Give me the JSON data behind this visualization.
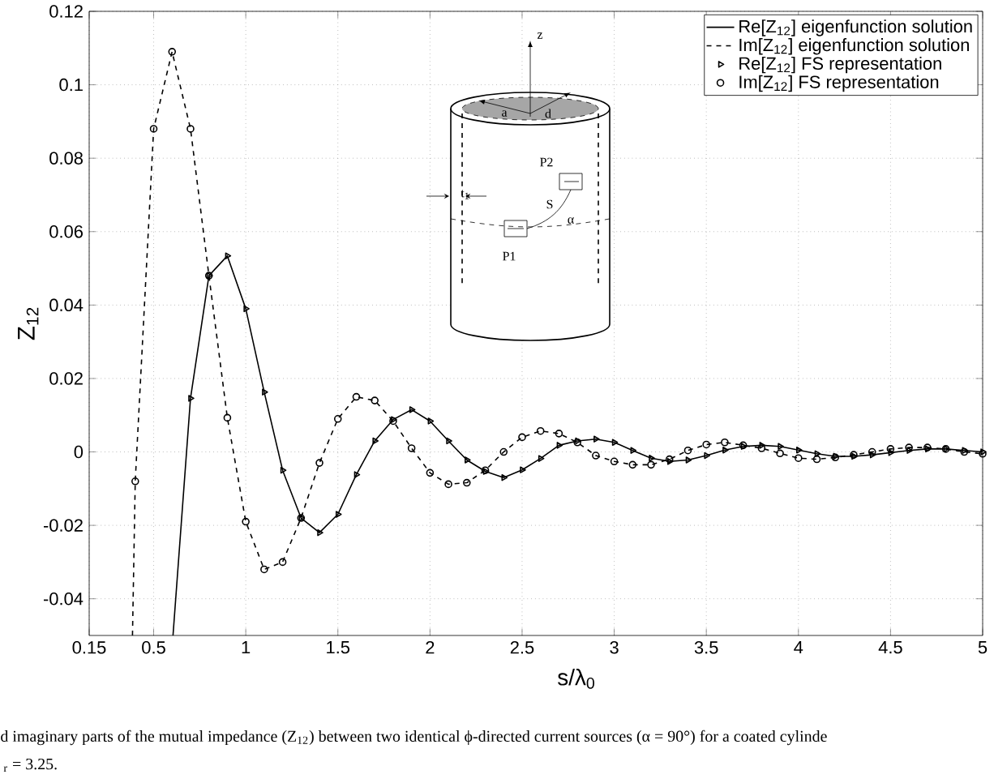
{
  "chart_data": {
    "type": "line",
    "xlabel": "s/λ$_{0}$",
    "ylabel": "Z$_{12}$",
    "xlim": [
      0.15,
      5
    ],
    "ylim": [
      -0.05,
      0.12
    ],
    "xticks": [
      0.15,
      0.5,
      1,
      1.5,
      2,
      2.5,
      3,
      3.5,
      4,
      4.5,
      5
    ],
    "yticks": [
      -0.04,
      -0.02,
      0,
      0.02,
      0.04,
      0.06,
      0.08,
      0.1,
      0.12
    ],
    "grid": true,
    "legend": "top right",
    "series": [
      {
        "name": "Re[Z$_{12}$] eigenfunction solution",
        "color": "#000000",
        "marker": "none",
        "line_style": "solid",
        "x": [
          0.605,
          0.7,
          0.8,
          0.9,
          1.0,
          1.1,
          1.2,
          1.3,
          1.4,
          1.5,
          1.6,
          1.7,
          1.8,
          1.9,
          2.0,
          2.1,
          2.2,
          2.3,
          2.4,
          2.5,
          2.6,
          2.7,
          2.8,
          2.9,
          3.0,
          3.1,
          3.2,
          3.3,
          3.4,
          3.5,
          3.6,
          3.7,
          3.8,
          3.9,
          4.0,
          4.1,
          4.2,
          4.3,
          4.4,
          4.5,
          4.6,
          4.7,
          4.8,
          4.9,
          5.0
        ],
        "values": [
          -0.05,
          0.0146,
          0.048,
          0.0534,
          0.039,
          0.0163,
          -0.005,
          -0.018,
          -0.022,
          -0.017,
          -0.0062,
          0.003,
          0.0088,
          0.0115,
          0.0084,
          0.003,
          -0.0022,
          -0.0053,
          -0.007,
          -0.0049,
          -0.0018,
          0.0018,
          0.003,
          0.0035,
          0.0026,
          0.0004,
          -0.0017,
          -0.0026,
          -0.0022,
          -0.001,
          0.0005,
          0.0015,
          0.0018,
          0.0015,
          0.0005,
          -0.0005,
          -0.0012,
          -0.0012,
          -0.0008,
          -0.0002,
          0.0004,
          0.0008,
          0.0008,
          0.0004,
          0.0
        ]
      },
      {
        "name": "Im[Z$_{12}$] eigenfunction solution",
        "color": "#000000",
        "marker": "none",
        "line_style": "dashed",
        "x": [
          0.385,
          0.4,
          0.5,
          0.6,
          0.7,
          0.8,
          0.9,
          1.0,
          1.1,
          1.2,
          1.3,
          1.4,
          1.5,
          1.6,
          1.7,
          1.8,
          1.9,
          2.0,
          2.1,
          2.2,
          2.3,
          2.4,
          2.5,
          2.6,
          2.7,
          2.8,
          2.9,
          3.0,
          3.1,
          3.2,
          3.3,
          3.4,
          3.5,
          3.6,
          3.7,
          3.8,
          3.9,
          4.0,
          4.1,
          4.2,
          4.3,
          4.4,
          4.5,
          4.6,
          4.7,
          4.8,
          4.9,
          5.0
        ],
        "values": [
          -0.05,
          -0.008,
          0.088,
          0.109,
          0.088,
          0.048,
          0.0093,
          -0.019,
          -0.032,
          -0.03,
          -0.018,
          -0.003,
          0.009,
          0.015,
          0.014,
          0.0084,
          0.001,
          -0.0057,
          -0.0088,
          -0.0084,
          -0.005,
          0.0,
          0.004,
          0.0057,
          0.005,
          0.0026,
          -0.001,
          -0.0026,
          -0.0035,
          -0.0035,
          -0.002,
          0.0004,
          0.002,
          0.0026,
          0.0018,
          0.001,
          -0.0004,
          -0.0017,
          -0.002,
          -0.0015,
          -0.0008,
          0.0,
          0.0008,
          0.0012,
          0.0012,
          0.0008,
          0.0,
          -0.0005
        ]
      },
      {
        "name": "Re[Z$_{12}$] FS representation",
        "type": "scatter",
        "color": "#000000",
        "marker": "triangle",
        "x": [
          0.7,
          0.8,
          0.9,
          1.0,
          1.1,
          1.2,
          1.3,
          1.4,
          1.5,
          1.6,
          1.7,
          1.8,
          1.9,
          2.0,
          2.1,
          2.2,
          2.3,
          2.4,
          2.5,
          2.6,
          2.7,
          2.8,
          2.9,
          3.0,
          3.1,
          3.2,
          3.3,
          3.4,
          3.5,
          3.6,
          3.7,
          3.8,
          3.9,
          4.0,
          4.1,
          4.2,
          4.3,
          4.4,
          4.5,
          4.6,
          4.7,
          4.8,
          4.9,
          5.0
        ],
        "values": [
          0.0146,
          0.048,
          0.0534,
          0.039,
          0.0163,
          -0.005,
          -0.018,
          -0.022,
          -0.017,
          -0.0062,
          0.003,
          0.0088,
          0.0115,
          0.0084,
          0.003,
          -0.0022,
          -0.0053,
          -0.007,
          -0.0049,
          -0.0018,
          0.0018,
          0.003,
          0.0035,
          0.0026,
          0.0004,
          -0.0017,
          -0.0026,
          -0.0022,
          -0.001,
          0.0005,
          0.0015,
          0.0018,
          0.0015,
          0.0005,
          -0.0005,
          -0.0012,
          -0.0012,
          -0.0008,
          -0.0002,
          0.0004,
          0.0008,
          0.0008,
          0.0004,
          0.0
        ]
      },
      {
        "name": "Im[Z$_{12}$] FS representation",
        "type": "scatter",
        "color": "#000000",
        "marker": "circle",
        "x": [
          0.4,
          0.5,
          0.6,
          0.7,
          0.8,
          0.9,
          1.0,
          1.1,
          1.2,
          1.3,
          1.4,
          1.5,
          1.6,
          1.7,
          1.8,
          1.9,
          2.0,
          2.1,
          2.2,
          2.3,
          2.4,
          2.5,
          2.6,
          2.7,
          2.8,
          2.9,
          3.0,
          3.1,
          3.2,
          3.3,
          3.4,
          3.5,
          3.6,
          3.7,
          3.8,
          3.9,
          4.0,
          4.1,
          4.2,
          4.3,
          4.4,
          4.5,
          4.6,
          4.7,
          4.8,
          4.9,
          5.0
        ],
        "values": [
          -0.008,
          0.088,
          0.109,
          0.088,
          0.048,
          0.0093,
          -0.019,
          -0.032,
          -0.03,
          -0.018,
          -0.003,
          0.009,
          0.015,
          0.014,
          0.0084,
          0.001,
          -0.0057,
          -0.0088,
          -0.0084,
          -0.005,
          0.0,
          0.004,
          0.0057,
          0.005,
          0.0026,
          -0.001,
          -0.0026,
          -0.0035,
          -0.0035,
          -0.002,
          0.0004,
          0.002,
          0.0026,
          0.0018,
          0.001,
          -0.0004,
          -0.0017,
          -0.002,
          -0.0015,
          -0.0008,
          0.0,
          0.0008,
          0.0012,
          0.0012,
          0.0008,
          0.0,
          -0.0005
        ]
      }
    ],
    "annotations": [
      "d imaginary parts of the mutual impedance (Z$_{12}$) between two identical ϕ-directed current sources (α = 90°) for a coated cylinde",
      "$_{r}$ = 3.25.",
      "z",
      "a",
      "d",
      "t$_{1}$",
      "P1",
      "P2",
      "S",
      "α"
    ]
  }
}
